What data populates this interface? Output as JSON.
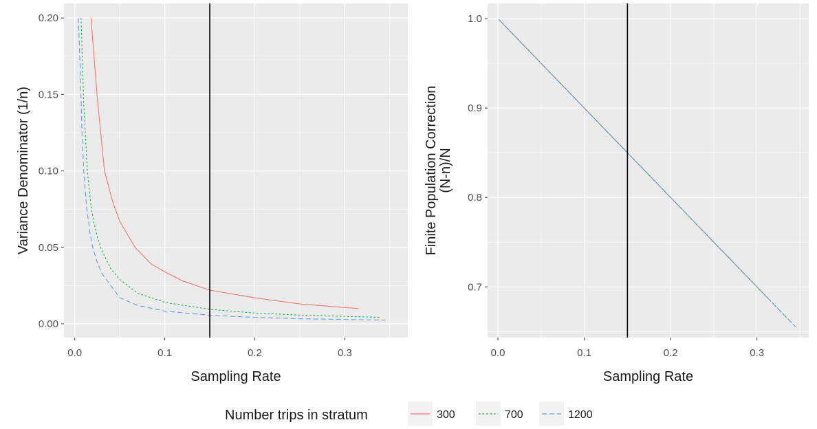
{
  "chart_data": [
    {
      "type": "line",
      "xlabel": "Sampling Rate",
      "ylabel": "Variance Denominator (1/n)",
      "xlim": [
        -0.012,
        0.37
      ],
      "ylim": [
        -0.009,
        0.2095
      ],
      "xticks": [
        0.0,
        0.1,
        0.2,
        0.3
      ],
      "xtick_labels": [
        "0.0",
        "0.1",
        "0.2",
        "0.3"
      ],
      "yticks": [
        0.0,
        0.05,
        0.1,
        0.15,
        0.2
      ],
      "ytick_labels": [
        "0.00",
        "0.05",
        "0.10",
        "0.15",
        "0.20"
      ],
      "grid": true,
      "vline_x": 0.15,
      "series": [
        {
          "name": "300",
          "color": "#F8766D",
          "dash": "solid",
          "x": [
            0.018,
            0.025,
            0.033,
            0.042,
            0.05,
            0.067,
            0.085,
            0.1,
            0.12,
            0.15,
            0.2,
            0.25,
            0.315
          ],
          "y": [
            0.2,
            0.148,
            0.1,
            0.08,
            0.067,
            0.05,
            0.039,
            0.034,
            0.028,
            0.022,
            0.017,
            0.013,
            0.01
          ]
        },
        {
          "name": "700",
          "color": "#00BA38",
          "dash": "dotted",
          "x": [
            0.007,
            0.01,
            0.014,
            0.018,
            0.021,
            0.025,
            0.03,
            0.04,
            0.05,
            0.07,
            0.1,
            0.15,
            0.2,
            0.25,
            0.34
          ],
          "y": [
            0.2,
            0.143,
            0.1,
            0.077,
            0.067,
            0.057,
            0.048,
            0.036,
            0.029,
            0.02,
            0.014,
            0.0095,
            0.007,
            0.0057,
            0.0042
          ]
        },
        {
          "name": "1200",
          "color": "#619CFF",
          "dash": "dashed",
          "x": [
            0.004,
            0.006,
            0.008,
            0.01,
            0.013,
            0.017,
            0.02,
            0.025,
            0.03,
            0.04,
            0.05,
            0.07,
            0.1,
            0.15,
            0.2,
            0.25,
            0.345
          ],
          "y": [
            0.2,
            0.167,
            0.125,
            0.1,
            0.077,
            0.059,
            0.05,
            0.04,
            0.033,
            0.025,
            0.017,
            0.012,
            0.0083,
            0.0056,
            0.0042,
            0.0033,
            0.0024
          ]
        }
      ]
    },
    {
      "type": "line",
      "xlabel": "Sampling Rate",
      "ylabel": "Finite Population Correction",
      "ylabel2": "(N-n)/N",
      "xlim": [
        -0.012,
        0.36
      ],
      "ylim": [
        0.6433,
        1.017
      ],
      "xticks": [
        0.0,
        0.1,
        0.2,
        0.3
      ],
      "xtick_labels": [
        "0.0",
        "0.1",
        "0.2",
        "0.3"
      ],
      "yticks": [
        0.7,
        0.8,
        0.9,
        1.0
      ],
      "ytick_labels": [
        "0.7",
        "0.8",
        "0.9",
        "1.0"
      ],
      "grid": true,
      "vline_x": 0.15,
      "series": [
        {
          "name": "300",
          "color": "#F8766D",
          "dash": "solid",
          "x": [
            0.0033,
            0.315
          ],
          "y": [
            0.9967,
            0.685
          ]
        },
        {
          "name": "700",
          "color": "#00BA38",
          "dash": "dotted",
          "x": [
            0.0014,
            0.34
          ],
          "y": [
            0.9986,
            0.66
          ]
        },
        {
          "name": "1200",
          "color": "#619CFF",
          "dash": "dashed",
          "x": [
            0.0008,
            0.345
          ],
          "y": [
            0.9992,
            0.655
          ]
        }
      ]
    }
  ],
  "legend": {
    "title": "Number trips in stratum",
    "items": [
      {
        "label": "300",
        "color": "#F8766D",
        "dash": "solid"
      },
      {
        "label": "700",
        "color": "#00BA38",
        "dash": "dotted"
      },
      {
        "label": "1200",
        "color": "#619CFF",
        "dash": "dashed"
      }
    ]
  }
}
